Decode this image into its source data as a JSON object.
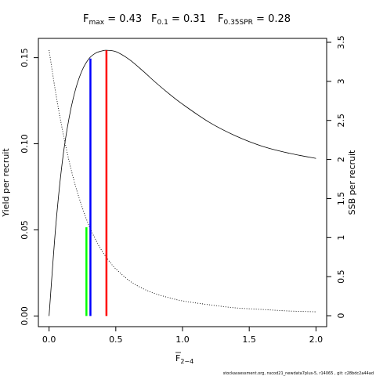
{
  "chart_data": {
    "type": "line",
    "title_parts": [
      {
        "base": "F",
        "sub": "max",
        "value": "= 0.43"
      },
      {
        "base": "F",
        "sub": "0.1",
        "value": "= 0.31"
      },
      {
        "base": "F",
        "sub": "0.35SPR",
        "value": "= 0.28"
      }
    ],
    "xlabel": {
      "base": "F",
      "sub": "2−4"
    },
    "ylabel": "Yield per recruit",
    "y2label": "SSB per recruit",
    "xlim": [
      -0.08,
      2.08
    ],
    "ylim": [
      -0.0062,
      0.1612
    ],
    "y2lim": [
      -0.14,
      3.55
    ],
    "xticks": [
      0,
      0.5,
      1,
      1.5,
      2
    ],
    "xtick_labels": [
      "0.0",
      "0.5",
      "1.0",
      "1.5",
      "2.0"
    ],
    "yticks": [
      0,
      0.05,
      0.1,
      0.15
    ],
    "ytick_labels": [
      "0.00",
      "0.05",
      "0.10",
      "0.15"
    ],
    "y2ticks": [
      0,
      0.5,
      1,
      1.5,
      2,
      2.5,
      3,
      3.5
    ],
    "y2tick_labels": [
      "0",
      "0.5",
      "1",
      "1.5",
      "2",
      "2.5",
      "3",
      "3.5"
    ],
    "series": [
      {
        "style": "solid",
        "axis": "left",
        "x": [
          0,
          0.05,
          0.1,
          0.15,
          0.2,
          0.25,
          0.3,
          0.35,
          0.4,
          0.43,
          0.5,
          0.6,
          0.7,
          0.8,
          0.9,
          1.0,
          1.2,
          1.4,
          1.6,
          1.8,
          2.0
        ],
        "y": [
          0,
          0.052,
          0.09,
          0.115,
          0.132,
          0.143,
          0.1495,
          0.1527,
          0.154,
          0.1543,
          0.1535,
          0.149,
          0.1425,
          0.1355,
          0.129,
          0.123,
          0.1125,
          0.1045,
          0.0985,
          0.0945,
          0.0915
        ]
      },
      {
        "style": "dotted",
        "axis": "right",
        "x": [
          0,
          0.05,
          0.1,
          0.15,
          0.2,
          0.25,
          0.3,
          0.35,
          0.4,
          0.45,
          0.5,
          0.6,
          0.7,
          0.8,
          0.9,
          1.0,
          1.2,
          1.4,
          1.6,
          1.8,
          2.0
        ],
        "y": [
          3.4,
          2.85,
          2.38,
          1.98,
          1.65,
          1.38,
          1.15,
          0.97,
          0.82,
          0.7,
          0.6,
          0.45,
          0.35,
          0.28,
          0.23,
          0.19,
          0.14,
          0.1,
          0.08,
          0.06,
          0.05
        ]
      }
    ],
    "reference_lines": [
      {
        "name": "Fmax",
        "x": 0.43,
        "y_top": 0.1543,
        "color": "#ff0000"
      },
      {
        "name": "F0.1",
        "x": 0.31,
        "y_top": 0.1495,
        "color": "#0000ff"
      },
      {
        "name": "F0.35SPR",
        "x": 0.28,
        "y_top": 0.0515,
        "color": "#00ff00"
      }
    ],
    "grid": false,
    "legend": "none"
  },
  "footer": "stockassessment.org, nscod21_newdata7plus-5, r14065 , git: c28bdc2a44ad"
}
